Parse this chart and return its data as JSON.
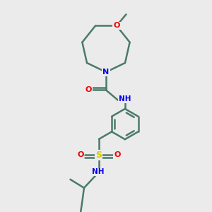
{
  "background_color": "#ebebeb",
  "bond_color": "#4a7a6a",
  "bond_width": 1.8,
  "atom_colors": {
    "N": "#0000ee",
    "O": "#ee0000",
    "S": "#cccc00",
    "C": "#4a7a6a",
    "H": "#7a9a8a"
  },
  "figsize": [
    3.0,
    3.0
  ],
  "dpi": 100
}
